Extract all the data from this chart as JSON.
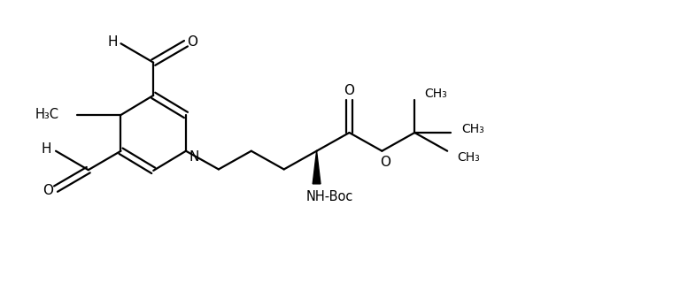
{
  "background_color": "#ffffff",
  "line_color": "#000000",
  "line_width": 1.6,
  "fig_width": 7.77,
  "fig_height": 3.2,
  "dpi": 100,
  "xlim": [
    0,
    10.5
  ],
  "ylim": [
    0,
    4.4
  ]
}
